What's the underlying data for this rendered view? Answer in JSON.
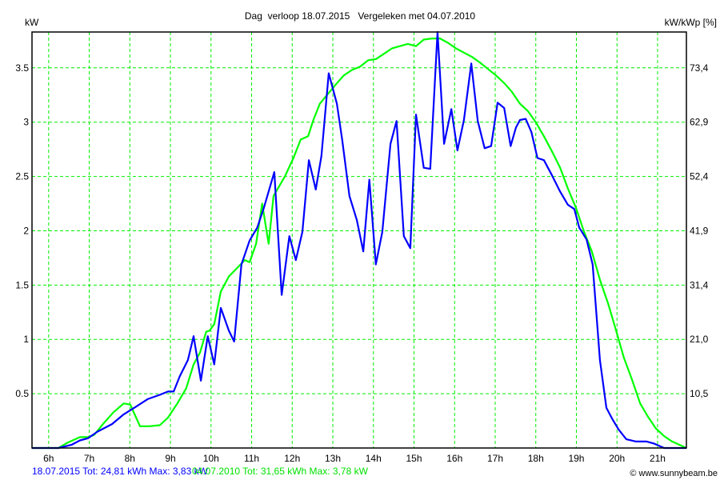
{
  "chart_data": {
    "type": "line",
    "title": "Dag  verloop 18.07.2015   Vergeleken met 04.07.2010",
    "ylabel": "kW",
    "ylabel_right": "kW/kWp [%]",
    "xlim": [
      5.59,
      21.71
    ],
    "ylim": [
      0,
      3.83
    ],
    "grid": true,
    "x_ticks": [
      6,
      7,
      8,
      9,
      10,
      11,
      12,
      13,
      14,
      15,
      16,
      17,
      18,
      19,
      20,
      21
    ],
    "x_tick_labels": [
      "6h",
      "7h",
      "8h",
      "9h",
      "10h",
      "11h",
      "12h",
      "13h",
      "14h",
      "15h",
      "16h",
      "17h",
      "18h",
      "19h",
      "20h",
      "21h"
    ],
    "y_ticks": [
      0.5,
      1,
      1.5,
      2,
      2.5,
      3,
      3.5
    ],
    "y_tick_labels": [
      "0.5",
      "1",
      "1.5",
      "2",
      "2.5",
      "3",
      "3.5"
    ],
    "y_right_tick_labels": [
      "10,5",
      "21,0",
      "31,4",
      "41,9",
      "52,4",
      "62,9",
      "73,4"
    ],
    "series": [
      {
        "name": "18.07.2015",
        "color": "#0000ff",
        "legend": "18.07.2015 Tot: 24,81 kWh Max: 3,83 kW",
        "x": [
          5.59,
          6.24,
          6.57,
          6.77,
          6.97,
          7.2,
          7.56,
          7.85,
          8.15,
          8.44,
          8.74,
          8.94,
          9.08,
          9.23,
          9.43,
          9.57,
          9.75,
          9.92,
          10.08,
          10.24,
          10.44,
          10.57,
          10.75,
          10.95,
          11.14,
          11.3,
          11.56,
          11.74,
          11.93,
          12.09,
          12.25,
          12.41,
          12.58,
          12.72,
          12.9,
          13.1,
          13.23,
          13.41,
          13.59,
          13.75,
          13.9,
          14.06,
          14.22,
          14.42,
          14.57,
          14.75,
          14.91,
          15.05,
          15.24,
          15.4,
          15.58,
          15.74,
          15.92,
          16.07,
          16.23,
          16.41,
          16.57,
          16.74,
          16.9,
          17.06,
          17.22,
          17.38,
          17.51,
          17.61,
          17.75,
          17.89,
          18.04,
          18.2,
          18.4,
          18.6,
          18.79,
          18.95,
          19.07,
          19.25,
          19.4,
          19.58,
          19.74,
          19.88,
          20.04,
          20.23,
          20.47,
          20.73,
          20.92,
          21.16,
          21.71
        ],
        "y": [
          0,
          0,
          0.03,
          0.07,
          0.09,
          0.15,
          0.22,
          0.31,
          0.38,
          0.45,
          0.49,
          0.52,
          0.52,
          0.66,
          0.81,
          1.03,
          0.62,
          1.03,
          0.77,
          1.29,
          1.08,
          0.98,
          1.69,
          1.91,
          2.03,
          2.21,
          2.54,
          1.41,
          1.95,
          1.73,
          1.99,
          2.65,
          2.38,
          2.69,
          3.45,
          3.17,
          2.84,
          2.32,
          2.1,
          1.81,
          2.47,
          1.69,
          1.99,
          2.8,
          3.01,
          1.95,
          1.84,
          3.07,
          2.58,
          2.57,
          3.83,
          2.8,
          3.12,
          2.74,
          3.02,
          3.54,
          3.01,
          2.76,
          2.78,
          3.18,
          3.13,
          2.78,
          2.95,
          3.02,
          3.03,
          2.91,
          2.67,
          2.65,
          2.51,
          2.36,
          2.24,
          2.2,
          2.03,
          1.92,
          1.69,
          0.81,
          0.37,
          0.27,
          0.17,
          0.08,
          0.06,
          0.06,
          0.04,
          0,
          0
        ]
      },
      {
        "name": "04.07.2010",
        "color": "#00ff00",
        "legend": "04.07.2010 Tot: 31,65 kWh Max: 3,78 kW",
        "x": [
          5.59,
          6.24,
          6.47,
          6.77,
          6.97,
          7.12,
          7.36,
          7.6,
          7.85,
          8.01,
          8.25,
          8.48,
          8.74,
          8.94,
          9.17,
          9.39,
          9.57,
          9.73,
          9.88,
          9.96,
          10.08,
          10.24,
          10.44,
          10.65,
          10.83,
          10.95,
          11.11,
          11.26,
          11.42,
          11.54,
          11.82,
          12.03,
          12.21,
          12.39,
          12.52,
          12.68,
          12.88,
          13.08,
          13.27,
          13.47,
          13.67,
          13.87,
          14.06,
          14.26,
          14.46,
          14.65,
          14.85,
          15.05,
          15.24,
          15.44,
          15.64,
          15.84,
          16.03,
          16.23,
          16.43,
          16.62,
          16.82,
          17.02,
          17.22,
          17.41,
          17.61,
          17.81,
          18.0,
          18.2,
          18.4,
          18.6,
          18.79,
          18.99,
          19.19,
          19.38,
          19.58,
          19.78,
          19.98,
          20.17,
          20.37,
          20.57,
          20.76,
          20.96,
          21.16,
          21.36,
          21.71
        ],
        "y": [
          0,
          0,
          0.05,
          0.1,
          0.1,
          0.12,
          0.23,
          0.33,
          0.41,
          0.4,
          0.2,
          0.2,
          0.21,
          0.28,
          0.41,
          0.55,
          0.77,
          0.88,
          1.07,
          1.08,
          1.14,
          1.44,
          1.58,
          1.66,
          1.73,
          1.71,
          1.88,
          2.25,
          1.88,
          2.32,
          2.5,
          2.67,
          2.84,
          2.87,
          3.02,
          3.17,
          3.26,
          3.35,
          3.43,
          3.48,
          3.51,
          3.57,
          3.58,
          3.63,
          3.68,
          3.7,
          3.72,
          3.7,
          3.76,
          3.77,
          3.77,
          3.73,
          3.68,
          3.64,
          3.6,
          3.55,
          3.49,
          3.43,
          3.36,
          3.28,
          3.17,
          3.1,
          3.0,
          2.87,
          2.73,
          2.58,
          2.39,
          2.21,
          1.99,
          1.81,
          1.55,
          1.33,
          1.08,
          0.83,
          0.63,
          0.41,
          0.29,
          0.18,
          0.11,
          0.06,
          0
        ]
      }
    ],
    "footer": "© www.sunnybeam.be"
  }
}
